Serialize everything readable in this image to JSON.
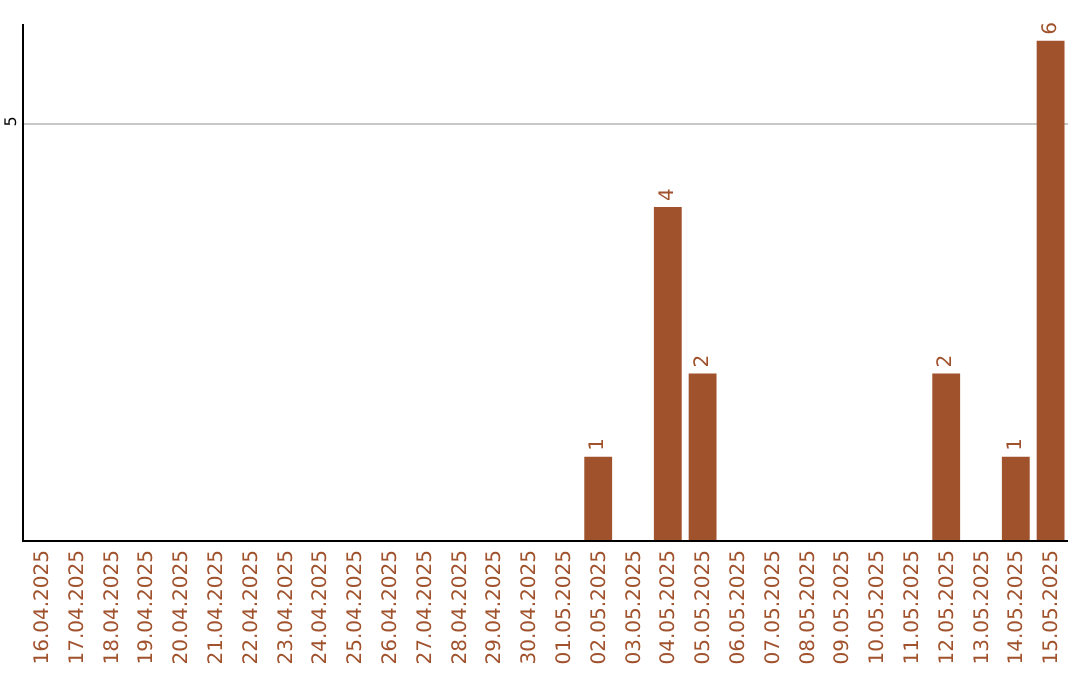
{
  "chart_data": {
    "type": "bar",
    "categories": [
      "16.04.2025",
      "17.04.2025",
      "18.04.2025",
      "19.04.2025",
      "20.04.2025",
      "21.04.2025",
      "22.04.2025",
      "23.04.2025",
      "24.04.2025",
      "25.04.2025",
      "26.04.2025",
      "27.04.2025",
      "28.04.2025",
      "29.04.2025",
      "30.04.2025",
      "01.05.2025",
      "02.05.2025",
      "03.05.2025",
      "04.05.2025",
      "05.05.2025",
      "06.05.2025",
      "07.05.2025",
      "08.05.2025",
      "09.05.2025",
      "10.05.2025",
      "11.05.2025",
      "12.05.2025",
      "13.05.2025",
      "14.05.2025",
      "15.05.2025"
    ],
    "values": [
      null,
      null,
      null,
      null,
      null,
      null,
      null,
      null,
      null,
      null,
      null,
      null,
      null,
      null,
      null,
      null,
      1,
      null,
      4,
      2,
      null,
      null,
      null,
      null,
      null,
      null,
      2,
      null,
      1,
      6
    ],
    "color": "#a0522d",
    "value_labels": [
      null,
      null,
      null,
      null,
      null,
      null,
      null,
      null,
      null,
      null,
      null,
      null,
      null,
      null,
      null,
      null,
      "1",
      null,
      "4",
      "2",
      null,
      null,
      null,
      null,
      null,
      null,
      "2",
      null,
      "1",
      "6"
    ],
    "ylim": [
      0,
      6.2
    ],
    "yticks": [
      5
    ],
    "grid": "y"
  }
}
